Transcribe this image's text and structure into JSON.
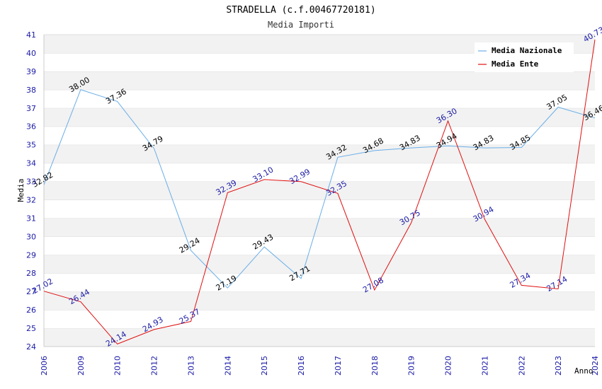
{
  "chart_data": {
    "type": "line",
    "title": "STRADELLA (c.f.00467720181)",
    "subtitle": "Media Importi",
    "xlabel": "Anno",
    "ylabel": "Media",
    "ylim": [
      24,
      41
    ],
    "yticks": [
      "24",
      "25",
      "26",
      "27",
      "28",
      "29",
      "30",
      "31",
      "32",
      "33",
      "34",
      "35",
      "36",
      "37",
      "38",
      "39",
      "40",
      "41"
    ],
    "categories": [
      "2006",
      "2009",
      "2010",
      "2012",
      "2013",
      "2014",
      "2015",
      "2016",
      "2017",
      "2018",
      "2019",
      "2020",
      "2021",
      "2022",
      "2023",
      "2024"
    ],
    "grid": "horizontal bands",
    "legend_position": "top-right",
    "series": [
      {
        "name": "Media Nazionale",
        "color": "#6aaee8",
        "label_color": "#000000",
        "values": [
          32.82,
          38.0,
          37.36,
          34.79,
          29.24,
          27.19,
          29.43,
          27.71,
          34.32,
          34.68,
          34.83,
          34.94,
          34.83,
          34.85,
          37.05,
          36.46
        ],
        "labels": [
          "32.82",
          "38.00",
          "37.36",
          "34.79",
          "29.24",
          "27.19",
          "29.43",
          "27.71",
          "34.32",
          "34.68",
          "34.83",
          "34.94",
          "34.83",
          "34.85",
          "37.05",
          "36.46"
        ]
      },
      {
        "name": "Media Ente",
        "color": "#e01010",
        "label_color": "#1a1aa6",
        "values": [
          27.02,
          26.44,
          24.14,
          24.93,
          25.37,
          32.39,
          33.1,
          32.99,
          32.35,
          27.08,
          30.75,
          36.3,
          30.94,
          27.34,
          27.14,
          40.73
        ],
        "labels": [
          "27.02",
          "26.44",
          "24.14",
          "24.93",
          "25.37",
          "32.39",
          "33.10",
          "32.99",
          "32.35",
          "27.08",
          "30.75",
          "36.30",
          "30.94",
          "27.34",
          "27.14",
          "40.73"
        ]
      }
    ]
  }
}
